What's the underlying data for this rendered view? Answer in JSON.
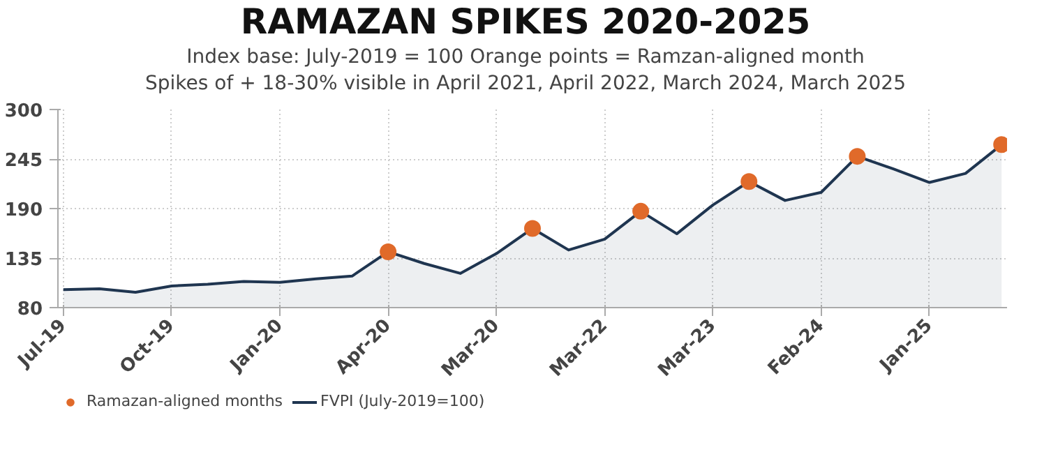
{
  "chart_data": {
    "type": "area",
    "title": "RAMAZAN SPIKES 2020-2025",
    "subtitle": "Index base: July-2019 = 100 Orange points = Ramzan-aligned month\nSpikes of + 18-30% visible in April 2021, April 2022, March 2024, March 2025",
    "categories": [
      "Jul-19",
      null,
      null,
      "Oct-19",
      null,
      null,
      "Jan-20",
      null,
      null,
      "Apr-20",
      null,
      null,
      "Mar-20",
      null,
      null,
      "Mar-22",
      null,
      null,
      "Mar-23",
      null,
      null,
      "Feb-24",
      null,
      null,
      "Jan-25",
      null,
      null
    ],
    "series": [
      {
        "name": "Ramazan-aligned months",
        "type": "scatter",
        "color": "#e06a2a",
        "values": [
          null,
          null,
          null,
          null,
          null,
          null,
          null,
          null,
          null,
          142,
          null,
          null,
          null,
          168,
          null,
          null,
          187,
          null,
          null,
          220,
          null,
          null,
          248,
          null,
          null,
          null,
          261
        ]
      },
      {
        "name": "FVPI (July-2019=100)",
        "color": "#1f3550",
        "values": [
          100,
          101,
          97,
          104,
          106,
          109,
          108,
          112,
          115,
          142,
          129,
          118,
          140,
          168,
          144,
          156,
          187,
          162,
          194,
          220,
          199,
          208,
          248,
          234,
          219,
          229,
          261
        ]
      }
    ],
    "ylim": [
      80,
      300
    ],
    "yticks": [
      80,
      135,
      190,
      245,
      300
    ],
    "grid": true,
    "legend": "bottom left"
  }
}
